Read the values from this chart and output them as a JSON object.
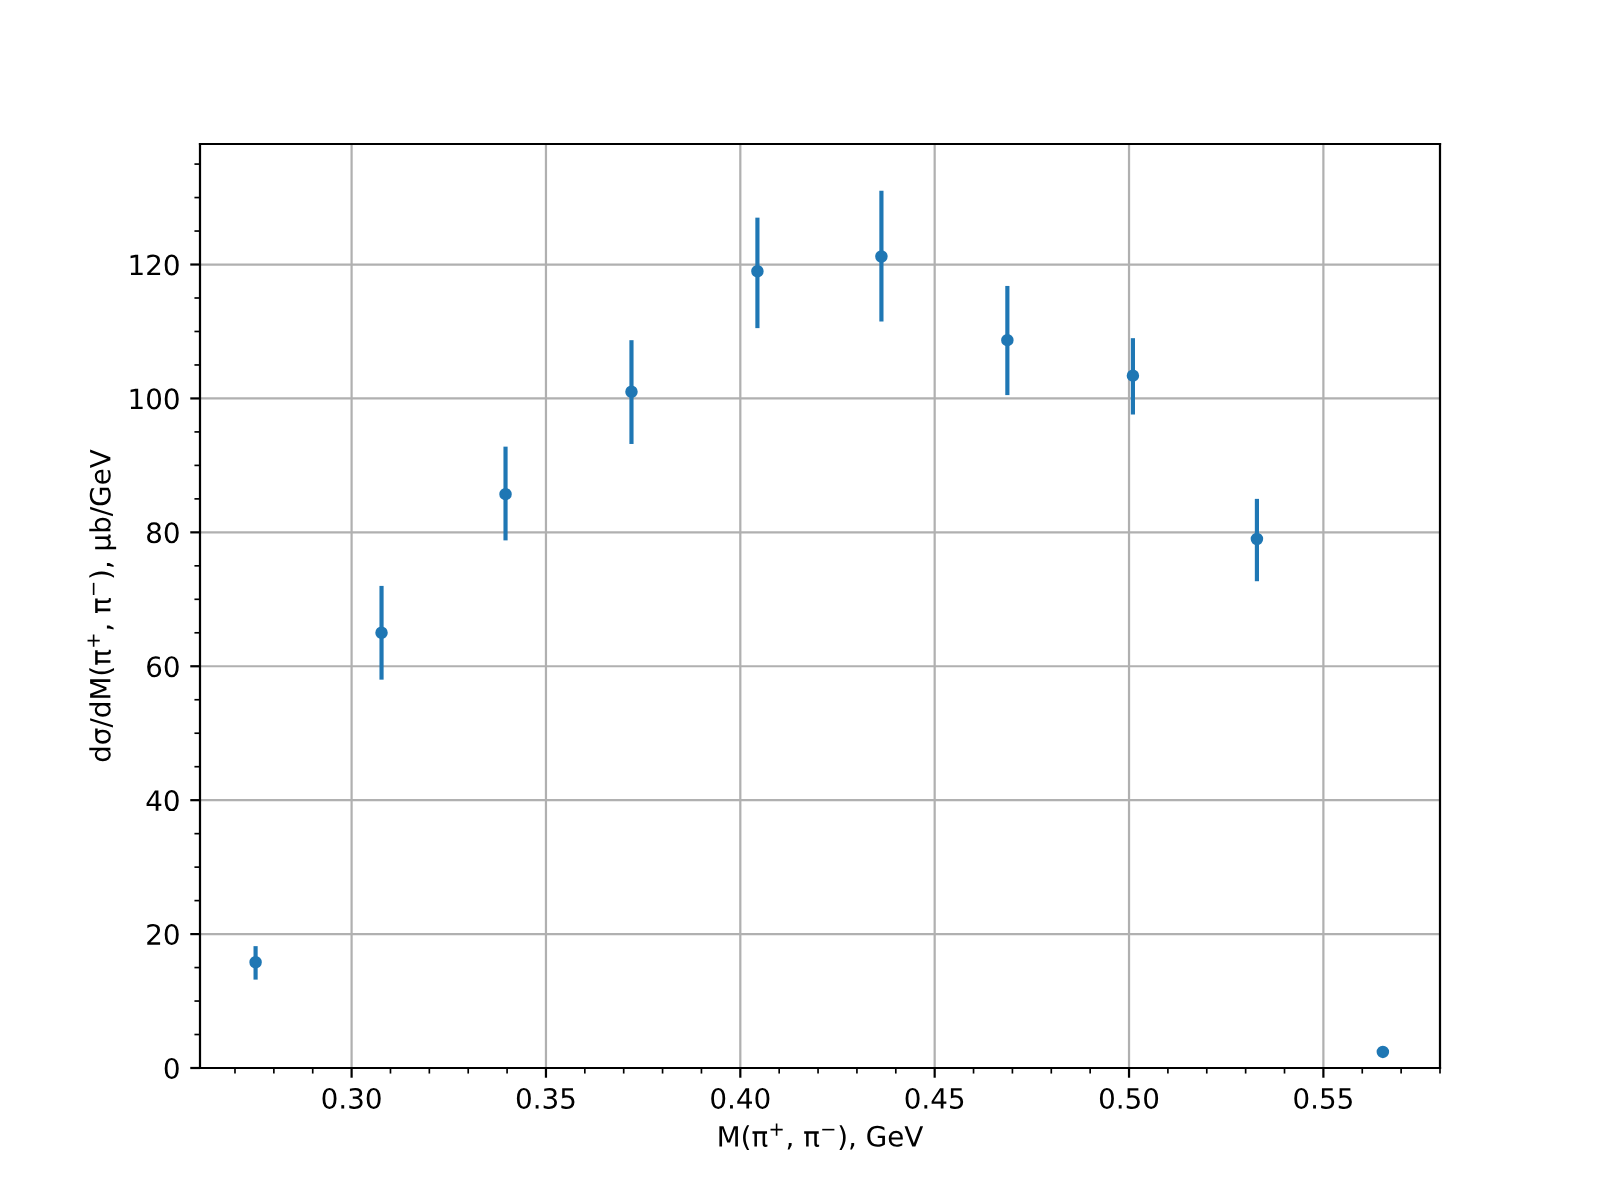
{
  "chart_data": {
    "type": "scatter",
    "xlabel": "M(π$^{+}$, π$^{−}$), GeV",
    "ylabel": "dσ/dM(π$^{+}$, π$^{−}$), μb/GeV",
    "x": [
      0.2753,
      0.3077,
      0.3396,
      0.372,
      0.4044,
      0.4363,
      0.4687,
      0.501,
      0.5329,
      0.5653
    ],
    "series": [
      {
        "color": "#1f77b4",
        "values": [
          15.8,
          65,
          85.7,
          101,
          119,
          121.2,
          108.7,
          103.4,
          79,
          2.4
        ],
        "errors": [
          [
            13.2,
            18.2
          ],
          [
            58,
            72
          ],
          [
            78.8,
            92.8
          ],
          [
            93.2,
            108.7
          ],
          [
            110.5,
            127
          ],
          [
            111.5,
            131
          ],
          [
            100.5,
            116.8
          ],
          [
            97.6,
            109
          ],
          [
            72.7,
            85
          ],
          null
        ]
      }
    ],
    "xlim": [
      0.261,
      0.58
    ],
    "ylim": [
      0,
      138
    ],
    "xticks": [
      {
        "value": 0.3,
        "label": "0.30"
      },
      0.35,
      {
        "value": 0.4,
        "label": "0.40"
      },
      0.45,
      {
        "value": 0.5,
        "label": "0.50"
      },
      0.55
    ],
    "yticks": [
      0,
      20,
      40,
      60,
      80,
      100,
      120
    ],
    "grid": true,
    "marker": "circle"
  }
}
